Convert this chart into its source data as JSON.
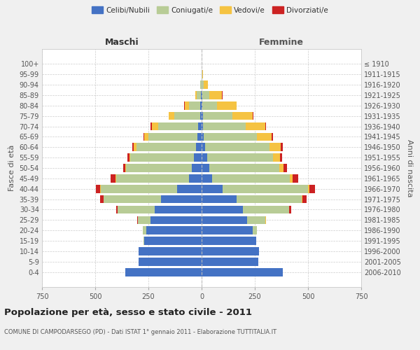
{
  "age_groups": [
    "100+",
    "95-99",
    "90-94",
    "85-89",
    "80-84",
    "75-79",
    "70-74",
    "65-69",
    "60-64",
    "55-59",
    "50-54",
    "45-49",
    "40-44",
    "35-39",
    "30-34",
    "25-29",
    "20-24",
    "15-19",
    "10-14",
    "5-9",
    "0-4"
  ],
  "birth_years": [
    "≤ 1910",
    "1911-1915",
    "1916-1920",
    "1921-1925",
    "1926-1930",
    "1931-1935",
    "1936-1940",
    "1941-1945",
    "1946-1950",
    "1951-1955",
    "1956-1960",
    "1961-1965",
    "1966-1970",
    "1971-1975",
    "1976-1980",
    "1981-1985",
    "1986-1990",
    "1991-1995",
    "1996-2000",
    "2001-2005",
    "2006-2010"
  ],
  "male": {
    "celibe": [
      0,
      0,
      1,
      2,
      5,
      8,
      15,
      20,
      25,
      35,
      45,
      60,
      115,
      190,
      220,
      240,
      260,
      270,
      295,
      295,
      360
    ],
    "coniugato": [
      0,
      1,
      5,
      20,
      55,
      120,
      190,
      230,
      280,
      300,
      310,
      340,
      360,
      270,
      175,
      60,
      15,
      3,
      1,
      0,
      0
    ],
    "vedovo": [
      0,
      0,
      2,
      8,
      20,
      25,
      30,
      20,
      15,
      5,
      5,
      3,
      2,
      1,
      0,
      0,
      0,
      0,
      0,
      0,
      0
    ],
    "divorziato": [
      0,
      0,
      0,
      0,
      1,
      1,
      5,
      3,
      5,
      8,
      8,
      25,
      20,
      15,
      5,
      2,
      0,
      0,
      0,
      0,
      0
    ]
  },
  "female": {
    "nubile": [
      0,
      0,
      1,
      2,
      3,
      5,
      8,
      10,
      18,
      25,
      35,
      50,
      100,
      165,
      195,
      215,
      240,
      255,
      270,
      265,
      380
    ],
    "coniugata": [
      0,
      2,
      10,
      35,
      70,
      140,
      200,
      250,
      300,
      310,
      330,
      365,
      400,
      305,
      215,
      85,
      20,
      3,
      1,
      0,
      0
    ],
    "vedova": [
      0,
      5,
      20,
      60,
      90,
      95,
      90,
      70,
      55,
      35,
      20,
      12,
      8,
      5,
      2,
      1,
      0,
      0,
      0,
      0,
      0
    ],
    "divorziata": [
      0,
      0,
      0,
      1,
      1,
      2,
      5,
      5,
      8,
      8,
      15,
      28,
      25,
      18,
      8,
      2,
      0,
      0,
      0,
      0,
      0
    ]
  },
  "colors": {
    "celibe": "#4472C4",
    "coniugato": "#B8CC96",
    "vedovo": "#F5C342",
    "divorziato": "#CC2222"
  },
  "title": "Popolazione per età, sesso e stato civile - 2011",
  "subtitle": "COMUNE DI CAMPODARSEGO (PD) - Dati ISTAT 1° gennaio 2011 - Elaborazione TUTTITALIA.IT",
  "xlabel_left": "Maschi",
  "xlabel_right": "Femmine",
  "ylabel_left": "Fasce di età",
  "ylabel_right": "Anni di nascita",
  "xlim": 750,
  "legend_labels": [
    "Celibi/Nubili",
    "Coniugati/e",
    "Vedovi/e",
    "Divorziati/e"
  ],
  "bg_color": "#f0f0f0",
  "plot_bg": "#ffffff"
}
